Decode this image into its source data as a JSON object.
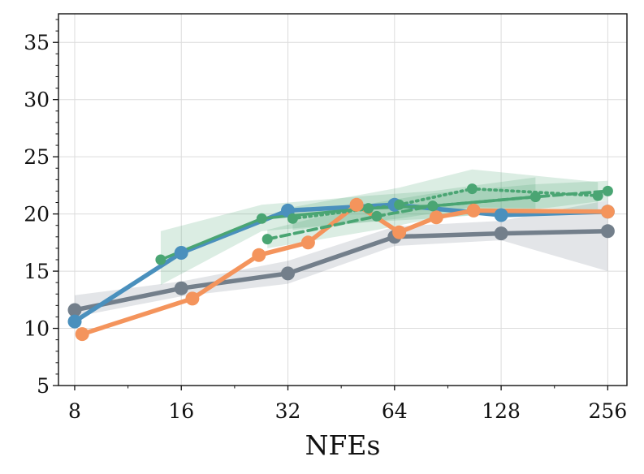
{
  "chart_data": {
    "type": "line",
    "title": "",
    "xlabel": "NFEs",
    "ylabel": "",
    "xscale": "log2",
    "xlim": [
      7.2,
      290
    ],
    "ylim": [
      5,
      37.5
    ],
    "grid": true,
    "x_ticks": [
      8,
      16,
      32,
      64,
      128,
      256
    ],
    "x_tick_labels": [
      "8",
      "16",
      "32",
      "64",
      "128",
      "256"
    ],
    "y_ticks": [
      5,
      10,
      15,
      20,
      25,
      30,
      35
    ],
    "y_tick_labels": [
      "5",
      "10",
      "15",
      "20",
      "25",
      "30",
      "35"
    ],
    "series": [
      {
        "name": "gray",
        "color": "#737f8b",
        "style": "solid",
        "x": [
          8,
          16,
          32,
          64,
          128,
          256
        ],
        "y": [
          11.6,
          13.5,
          14.8,
          18.0,
          18.3,
          18.5
        ],
        "band": {
          "color": "#737f8b",
          "x": [
            8,
            16,
            32,
            64,
            128,
            256
          ],
          "lower": [
            11.0,
            12.8,
            13.9,
            17.2,
            17.7,
            15.0
          ],
          "upper": [
            12.9,
            14.1,
            15.9,
            18.9,
            19.4,
            21.2
          ]
        }
      },
      {
        "name": "blue",
        "color": "#4a90bd",
        "style": "solid",
        "x": [
          8,
          16,
          32,
          64,
          128,
          256
        ],
        "y": [
          10.6,
          16.6,
          20.3,
          20.8,
          19.9,
          20.2
        ],
        "band": null
      },
      {
        "name": "orange",
        "color": "#f4945c",
        "style": "solid",
        "x": [
          8.4,
          17.2,
          26.5,
          36.5,
          50,
          66,
          84,
          107,
          256
        ],
        "y": [
          9.5,
          12.6,
          16.4,
          17.5,
          20.8,
          18.4,
          19.7,
          20.3,
          20.2
        ],
        "band": null
      },
      {
        "name": "green-solid",
        "color": "#4aa573",
        "style": "solid",
        "x": [
          14,
          27,
          54,
          82,
          160
        ],
        "y": [
          16.0,
          19.6,
          20.5,
          20.7,
          21.5
        ],
        "band": {
          "color": "#4aa573",
          "x": [
            14,
            27,
            54,
            82,
            160
          ],
          "lower": [
            13.8,
            18.5,
            19.3,
            19.6,
            20.3
          ],
          "upper": [
            18.5,
            20.8,
            21.6,
            22.0,
            23.2
          ]
        }
      },
      {
        "name": "green-dotted",
        "color": "#4aa573",
        "style": "dotted",
        "x": [
          33,
          66,
          106,
          240
        ],
        "y": [
          19.6,
          20.8,
          22.2,
          21.6
        ],
        "band": {
          "color": "#4aa573",
          "x": [
            33,
            66,
            106,
            240
          ],
          "lower": [
            18.6,
            19.6,
            20.6,
            20.4
          ],
          "upper": [
            20.6,
            22.3,
            23.9,
            22.8
          ]
        }
      },
      {
        "name": "green-dashed",
        "color": "#4aa573",
        "style": "dashed",
        "x": [
          28,
          57,
          82,
          160,
          256
        ],
        "y": [
          17.8,
          19.8,
          20.7,
          21.5,
          22.0
        ],
        "band": {
          "color": "#4aa573",
          "x": [
            28,
            57,
            82,
            160,
            256
          ],
          "lower": [
            17.0,
            18.6,
            19.6,
            20.4,
            21.2
          ],
          "upper": [
            18.6,
            21.0,
            21.8,
            22.6,
            22.9
          ]
        }
      }
    ]
  }
}
